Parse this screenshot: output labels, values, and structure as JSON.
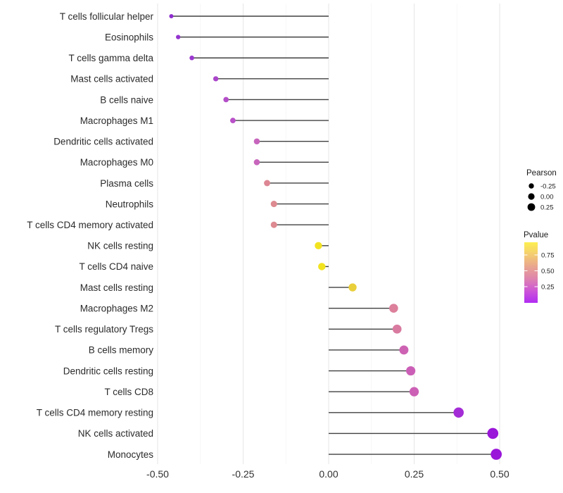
{
  "chart_data": {
    "type": "lollipop",
    "title": "",
    "xlabel": "",
    "ylabel": "",
    "x_ticks": [
      "-0.50",
      "-0.25",
      "0.00",
      "0.25",
      "0.50"
    ],
    "x_tick_values": [
      -0.5,
      -0.25,
      0,
      0.25,
      0.5
    ],
    "x_minor_values": [
      -0.375,
      -0.125,
      0.125,
      0.375
    ],
    "xlim": [
      -0.52,
      0.545
    ],
    "categories": [
      "T cells follicular helper",
      "Eosinophils",
      "T cells gamma delta",
      "Mast cells activated",
      "B cells naive",
      "Macrophages M1",
      "Dendritic cells activated",
      "Macrophages M0",
      "Plasma cells",
      "Neutrophils",
      "T cells CD4 memory activated",
      "NK cells resting",
      "T cells CD4 naive",
      "Mast cells resting",
      "Macrophages M2",
      "T cells regulatory  Tregs",
      "B cells memory",
      "Dendritic cells resting",
      "T cells CD8",
      "T cells CD4 memory resting",
      "NK cells activated",
      "Monocytes"
    ],
    "series": [
      {
        "name": "Pearson",
        "values": [
          -0.46,
          -0.44,
          -0.4,
          -0.33,
          -0.3,
          -0.28,
          -0.21,
          -0.21,
          -0.18,
          -0.16,
          -0.16,
          -0.03,
          -0.02,
          0.07,
          0.19,
          0.2,
          0.22,
          0.24,
          0.25,
          0.38,
          0.48,
          0.49
        ]
      }
    ],
    "pvalue_point_colors": [
      "#8f2ecf",
      "#9434cf",
      "#9c38cf",
      "#aa46ca",
      "#b44ec8",
      "#b951c8",
      "#c765bd",
      "#c766bc",
      "#dd8794",
      "#dd8a90",
      "#dd8a90",
      "#f2e321",
      "#f2e321",
      "#e9cf3a",
      "#dc809c",
      "#d97ba0",
      "#cd62b3",
      "#cb5fb7",
      "#cc60b5",
      "#a42cd6",
      "#9a16d9",
      "#9a16d9"
    ],
    "stem_color": "#404040",
    "grid_major_color": "#e6e6e6",
    "grid_minor_color": "#f3f3f3",
    "legend": {
      "size_title": "Pearson",
      "size_labels": [
        "-0.25",
        "0.00",
        "0.25"
      ],
      "size_dot_color": "#000000",
      "color_title": "Pvalue",
      "color_labels": [
        "0.75",
        "0.50",
        "0.25"
      ],
      "gradient_stops_top_to_bottom": [
        "#fcef4f",
        "#f4cd71",
        "#e9a68f",
        "#de84ae",
        "#cd56d6",
        "#b02cf2"
      ]
    },
    "legend_position": "right",
    "grid": "vertical-only"
  }
}
